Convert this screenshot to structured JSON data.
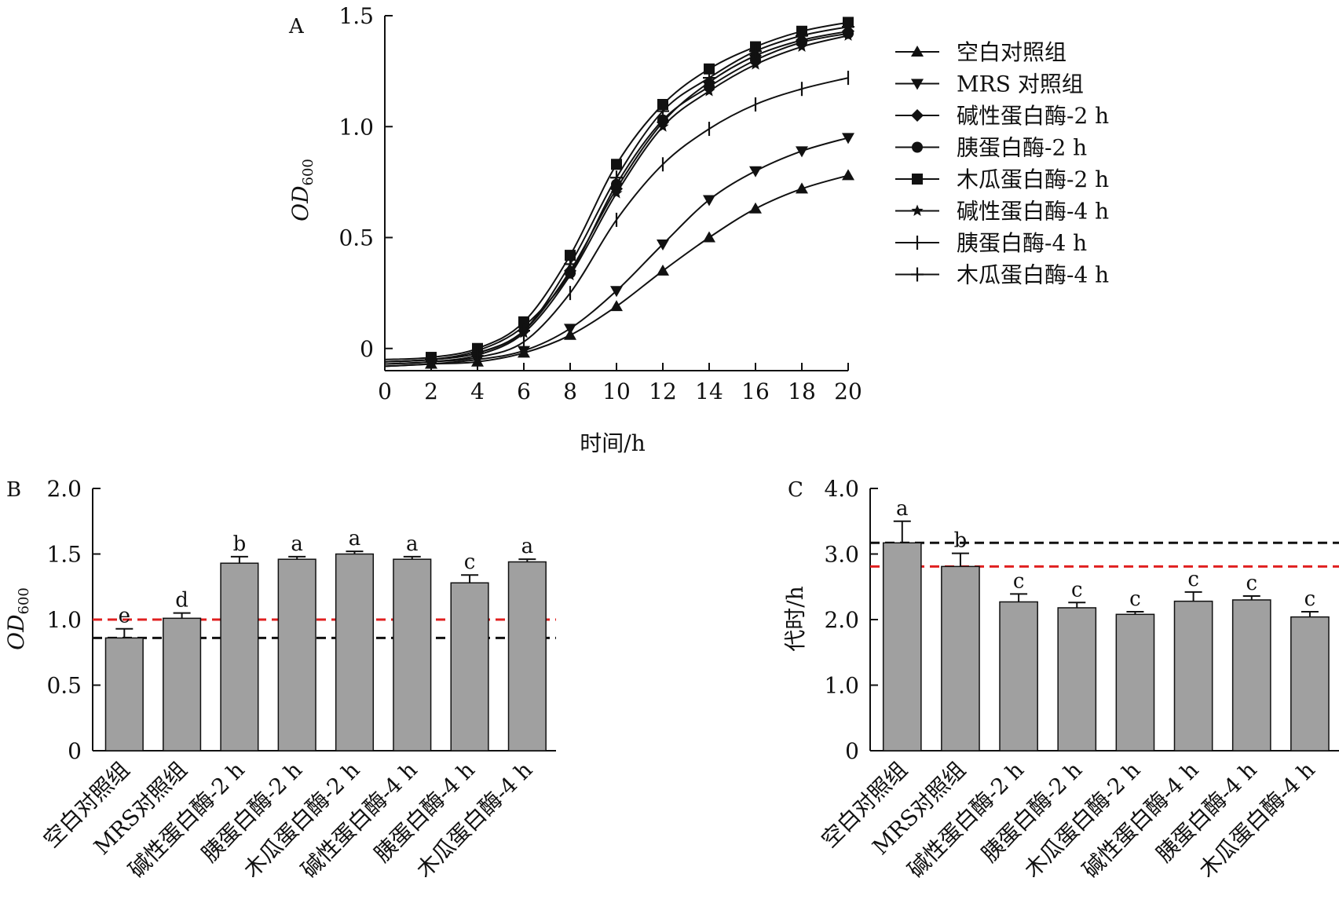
{
  "chart_data": [
    {
      "panel": "A",
      "type": "line",
      "ylabel_main": "OD",
      "ylabel_sub": "600",
      "xlabel": "时间/h",
      "xlim": [
        0,
        20
      ],
      "ylim": [
        -0.1,
        1.5
      ],
      "xticks": [
        "0",
        "2",
        "4",
        "6",
        "8",
        "10",
        "12",
        "14",
        "16",
        "18",
        "20"
      ],
      "yticks": [
        "0",
        "0.5",
        "1.0",
        "1.5"
      ],
      "x": [
        0,
        2,
        4,
        6,
        8,
        10,
        12,
        14,
        16,
        18,
        20
      ],
      "series": [
        {
          "name": "空白对照组",
          "marker": "triangle-up",
          "values": [
            -0.08,
            -0.07,
            -0.06,
            -0.02,
            0.06,
            0.19,
            0.35,
            0.5,
            0.63,
            0.72,
            0.78
          ]
        },
        {
          "name": "MRS 对照组",
          "marker": "triangle-down",
          "values": [
            -0.08,
            -0.07,
            -0.05,
            -0.01,
            0.09,
            0.26,
            0.47,
            0.67,
            0.8,
            0.89,
            0.95
          ]
        },
        {
          "name": "碱性蛋白酶-2 h",
          "marker": "diamond",
          "values": [
            -0.06,
            -0.05,
            -0.02,
            0.08,
            0.35,
            0.72,
            1.02,
            1.2,
            1.32,
            1.39,
            1.43
          ]
        },
        {
          "name": "胰蛋白酶-2 h",
          "marker": "circle",
          "values": [
            -0.06,
            -0.05,
            -0.01,
            0.1,
            0.34,
            0.74,
            1.03,
            1.18,
            1.3,
            1.38,
            1.42
          ]
        },
        {
          "name": "木瓜蛋白酶-2 h",
          "marker": "square",
          "values": [
            -0.05,
            -0.04,
            0.0,
            0.12,
            0.42,
            0.83,
            1.1,
            1.26,
            1.36,
            1.43,
            1.47
          ]
        },
        {
          "name": "碱性蛋白酶-4 h",
          "marker": "star",
          "values": [
            -0.07,
            -0.06,
            -0.03,
            0.07,
            0.33,
            0.7,
            1.0,
            1.16,
            1.28,
            1.36,
            1.41
          ]
        },
        {
          "name": "胰蛋白酶-4 h",
          "marker": "vbar",
          "values": [
            -0.07,
            -0.06,
            -0.04,
            0.03,
            0.25,
            0.58,
            0.83,
            0.99,
            1.1,
            1.17,
            1.22
          ]
        },
        {
          "name": "木瓜蛋白酶-4 h",
          "marker": "plus",
          "values": [
            -0.06,
            -0.05,
            -0.02,
            0.08,
            0.38,
            0.77,
            1.07,
            1.22,
            1.34,
            1.41,
            1.45
          ]
        }
      ]
    },
    {
      "panel": "B",
      "type": "bar",
      "ylabel_main": "OD",
      "ylabel_sub": "600",
      "ylim": [
        0,
        2.0
      ],
      "yticks": [
        "0",
        "0.5",
        "1.0",
        "1.5",
        "2.0"
      ],
      "categories": [
        "空白对照组",
        "MRS对照组",
        "碱性蛋白酶-2 h",
        "胰蛋白酶-2 h",
        "木瓜蛋白酶-2 h",
        "碱性蛋白酶-4 h",
        "胰蛋白酶-4 h",
        "木瓜蛋白酶-4 h"
      ],
      "values": [
        0.86,
        1.01,
        1.43,
        1.46,
        1.5,
        1.46,
        1.28,
        1.44
      ],
      "errors": [
        0.07,
        0.04,
        0.05,
        0.02,
        0.02,
        0.02,
        0.06,
        0.02
      ],
      "letters": [
        "e",
        "d",
        "b",
        "a",
        "a",
        "a",
        "c",
        "a"
      ],
      "reference_lines": [
        {
          "value": 1.0,
          "color": "#e02020"
        },
        {
          "value": 0.86,
          "color": "#111111"
        }
      ],
      "bar_color": "#a0a0a0"
    },
    {
      "panel": "C",
      "type": "bar",
      "ylabel": "代时/h",
      "ylim": [
        0,
        4.0
      ],
      "yticks": [
        "0",
        "1.0",
        "2.0",
        "3.0",
        "4.0"
      ],
      "categories": [
        "空白对照组",
        "MRS对照组",
        "碱性蛋白酶-2 h",
        "胰蛋白酶-2 h",
        "木瓜蛋白酶-2 h",
        "碱性蛋白酶-4 h",
        "胰蛋白酶-4 h",
        "木瓜蛋白酶-4 h"
      ],
      "values": [
        3.17,
        2.81,
        2.27,
        2.18,
        2.08,
        2.28,
        2.3,
        2.04
      ],
      "errors": [
        0.33,
        0.2,
        0.12,
        0.08,
        0.04,
        0.14,
        0.06,
        0.08
      ],
      "letters": [
        "a",
        "b",
        "c",
        "c",
        "c",
        "c",
        "c",
        "c"
      ],
      "reference_lines": [
        {
          "value": 3.17,
          "color": "#111111"
        },
        {
          "value": 2.81,
          "color": "#e02020"
        }
      ],
      "bar_color": "#a0a0a0"
    }
  ]
}
